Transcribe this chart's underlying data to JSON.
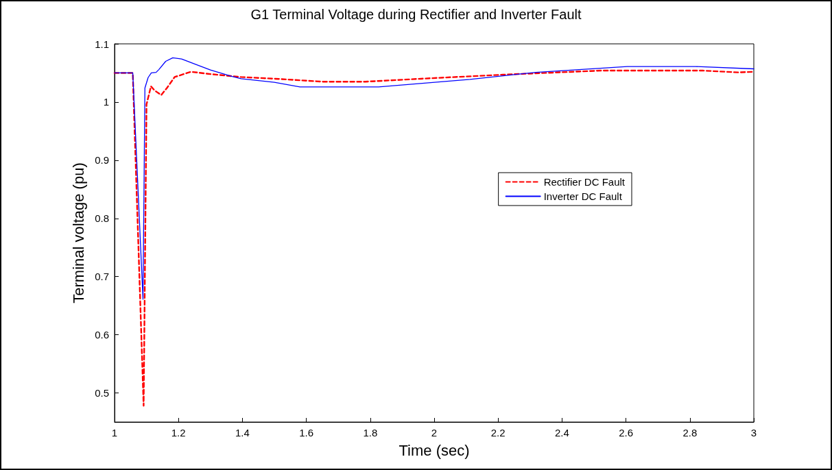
{
  "chart_data": {
    "type": "line",
    "title": "G1 Terminal Voltage during Rectifier and Inverter Fault",
    "xlabel": "Time (sec)",
    "ylabel": "Terminal voltage (pu)",
    "series": [
      {
        "name": "Rectifier DC Fault",
        "color": "#ff0000",
        "line_style": "dashed",
        "x": [
          1,
          1.057,
          1.091,
          1.1,
          1.114,
          1.125,
          1.146,
          1.165,
          1.188,
          1.239,
          1.3,
          1.396,
          1.503,
          1.652,
          1.785,
          1.958,
          2.215,
          2.521,
          2.84,
          2.95,
          3
        ],
        "values": [
          1.05,
          1.05,
          0.478,
          0.996,
          1.027,
          1.02,
          1.012,
          1.025,
          1.043,
          1.052,
          1.048,
          1.043,
          1.04,
          1.035,
          1.035,
          1.04,
          1.047,
          1.054,
          1.054,
          1.051,
          1.052
        ]
      },
      {
        "name": "Inverter DC Fault",
        "color": "#0000ff",
        "line_style": "solid",
        "x": [
          1,
          1.057,
          1.089,
          1.095,
          1.105,
          1.115,
          1.13,
          1.139,
          1.16,
          1.182,
          1.21,
          1.252,
          1.3,
          1.368,
          1.396,
          1.5,
          1.58,
          1.826,
          2.112,
          2.318,
          2.604,
          2.818,
          3
        ],
        "values": [
          1.05,
          1.05,
          0.661,
          1.024,
          1.042,
          1.05,
          1.051,
          1.056,
          1.07,
          1.076,
          1.074,
          1.065,
          1.055,
          1.044,
          1.04,
          1.034,
          1.026,
          1.026,
          1.039,
          1.051,
          1.061,
          1.061,
          1.057
        ]
      }
    ],
    "xlim": [
      1,
      3
    ],
    "xticks": [
      1,
      1.2,
      1.4,
      1.6,
      1.8,
      2,
      2.2,
      2.4,
      2.6,
      2.8,
      3
    ],
    "ylim": [
      0.45,
      1.1
    ],
    "yticks": [
      0.5,
      0.6,
      0.7,
      0.8,
      0.9,
      1,
      1.1
    ],
    "grid": false,
    "legend": "right",
    "marker": "none"
  }
}
